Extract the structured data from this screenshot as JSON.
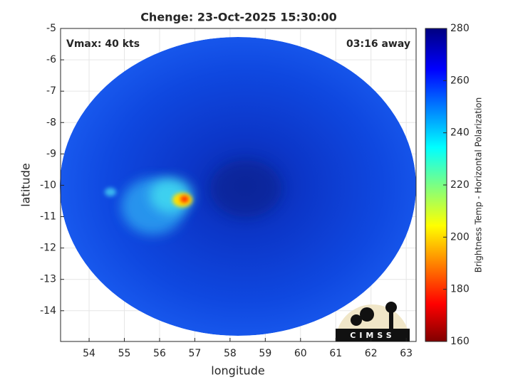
{
  "chart_data": {
    "type": "heatmap",
    "title": "Chenge: 23-Oct-2025 15:30:00",
    "annotations": [
      "Vmax: 40 kts",
      "03:16 away"
    ],
    "xlabel": "longitude",
    "ylabel": "latitude",
    "xlim": [
      53.19,
      63.28
    ],
    "ylim": [
      -14.98,
      -5
    ],
    "xticks": [
      54,
      55,
      56,
      57,
      58,
      59,
      60,
      61,
      62,
      63
    ],
    "yticks": [
      -5,
      -6,
      -7,
      -8,
      -9,
      -10,
      -11,
      -12,
      -13,
      -14
    ],
    "grid": true,
    "colorbar": {
      "label": "Brightness Temp - Horizontal Polarization",
      "lim": [
        160,
        280
      ],
      "ticks": [
        160,
        180,
        200,
        220,
        240,
        260,
        280
      ]
    },
    "logo": "CIMSS"
  }
}
